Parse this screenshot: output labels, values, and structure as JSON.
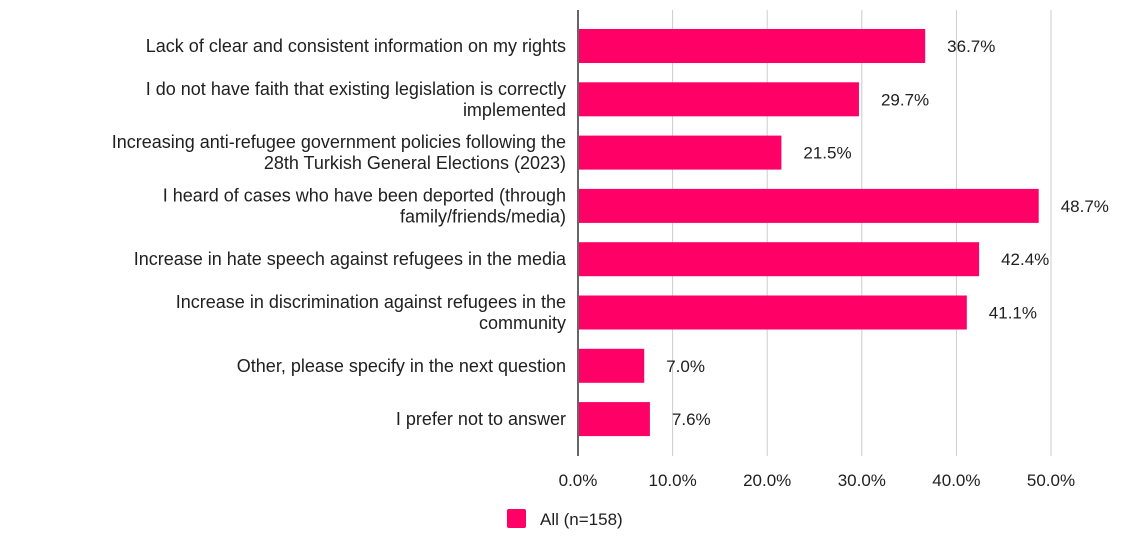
{
  "chart_data": {
    "type": "bar",
    "orientation": "horizontal",
    "title": "",
    "xlabel": "",
    "ylabel": "",
    "categories": [
      [
        "Lack of clear and consistent information on my rights"
      ],
      [
        "I do not have faith that existing legislation is correctly",
        "implemented"
      ],
      [
        "Increasing anti-refugee government policies following the",
        "28th Turkish General Elections (2023)"
      ],
      [
        "I heard of cases who have been deported (through",
        "family/friends/media)"
      ],
      [
        "Increase in hate speech against refugees in the media"
      ],
      [
        "Increase in discrimination against refugees in the",
        "community"
      ],
      [
        "Other, please specify in the next question"
      ],
      [
        "I prefer not to answer"
      ]
    ],
    "series": [
      {
        "name": "All (n=158)",
        "color": "#ff0066",
        "values": [
          36.7,
          29.7,
          21.5,
          48.7,
          42.4,
          41.1,
          7.0,
          7.6
        ],
        "value_labels": [
          "36.7%",
          "29.7%",
          "21.5%",
          "48.7%",
          "42.4%",
          "41.1%",
          "7.0%",
          "7.6%"
        ]
      }
    ],
    "xlim": [
      0,
      50
    ],
    "x_ticks": [
      0,
      10,
      20,
      30,
      40,
      50
    ],
    "x_tick_labels": [
      "0.0%",
      "10.0%",
      "20.0%",
      "30.0%",
      "40.0%",
      "50.0%"
    ],
    "grid": true,
    "legend": "bottom-center",
    "colors": {
      "bar": "#ff0066",
      "grid": "#cccccc",
      "axis": "#333333",
      "text": "#202020"
    }
  }
}
